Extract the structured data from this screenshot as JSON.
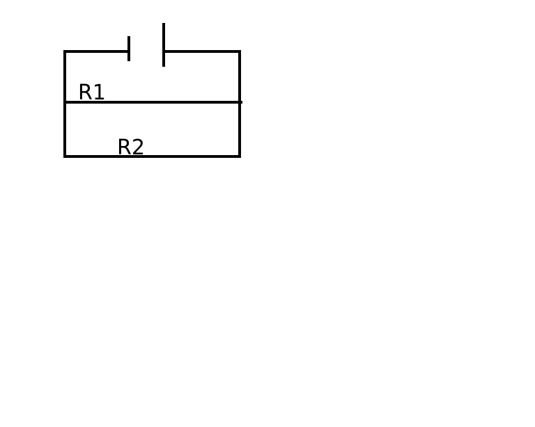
{
  "diagram": {
    "type": "circuit",
    "labels": {
      "r1": "R1",
      "r2": "R2"
    },
    "components": [
      {
        "kind": "battery",
        "name": "battery"
      },
      {
        "kind": "resistor",
        "label_key": "r1"
      },
      {
        "kind": "resistor",
        "label_key": "r2"
      }
    ],
    "colors": {
      "stroke": "#000000",
      "background": "#ffffff"
    }
  }
}
